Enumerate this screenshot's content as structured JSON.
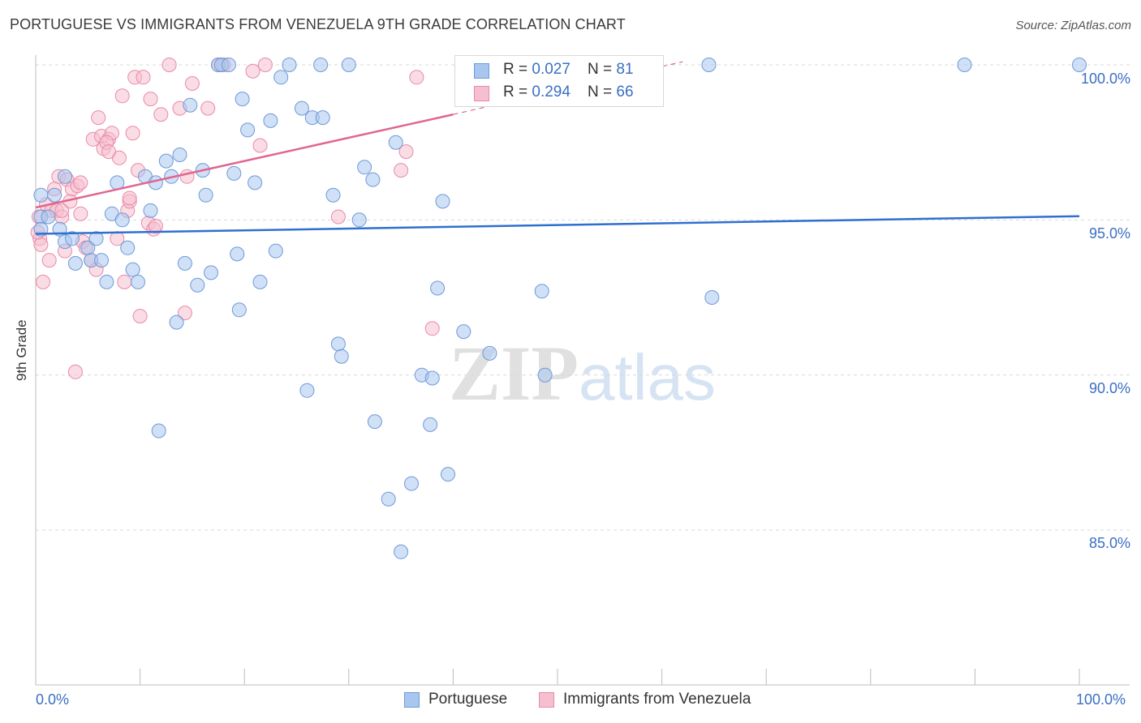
{
  "title": "PORTUGUESE VS IMMIGRANTS FROM VENEZUELA 9TH GRADE CORRELATION CHART",
  "source": "Source: ZipAtlas.com",
  "watermark": {
    "zip": "ZIP",
    "atlas": "atlas"
  },
  "legend": {
    "rows": [
      {
        "r_label": "R = ",
        "r_value": "0.027",
        "n_label": "N = ",
        "n_value": "81"
      },
      {
        "r_label": "R = ",
        "r_value": "0.294",
        "n_label": "N = ",
        "n_value": "66"
      }
    ]
  },
  "chart_data": {
    "type": "scatter",
    "title": "PORTUGUESE VS IMMIGRANTS FROM VENEZUELA 9TH GRADE CORRELATION CHART",
    "xlabel": "",
    "ylabel": "9th Grade",
    "xlim": [
      0,
      100
    ],
    "ylim": [
      80.0,
      100.3
    ],
    "x_tick_labels": [
      "0.0%",
      "100.0%"
    ],
    "y_ticks": [
      100,
      95,
      90,
      85
    ],
    "y_tick_labels": [
      "100.0%",
      "95.0%",
      "90.0%",
      "85.0%"
    ],
    "grid": "horizontal dashed",
    "legend_position": "top-center",
    "colors": {
      "portuguese_fill": "#a9c7ee",
      "portuguese_stroke": "#6e9ad8",
      "portuguese_line": "#2f6fd0",
      "venezuela_fill": "#f6bfd0",
      "venezuela_stroke": "#e98aa9",
      "venezuela_line": "#e0668f"
    },
    "series": [
      {
        "name": "Portuguese",
        "R": 0.027,
        "N": 81,
        "trend": {
          "x": [
            0,
            100
          ],
          "y": [
            94.55,
            95.12
          ]
        },
        "points": [
          [
            0.5,
            95.8
          ],
          [
            0.5,
            95.1
          ],
          [
            0.5,
            94.7
          ],
          [
            1.2,
            95.1
          ],
          [
            1.8,
            95.8
          ],
          [
            2.3,
            94.7
          ],
          [
            2.8,
            96.4
          ],
          [
            2.8,
            94.3
          ],
          [
            3.5,
            94.4
          ],
          [
            3.8,
            93.6
          ],
          [
            5.0,
            94.1
          ],
          [
            5.3,
            93.7
          ],
          [
            5.8,
            94.4
          ],
          [
            6.3,
            93.7
          ],
          [
            6.8,
            93.0
          ],
          [
            7.3,
            95.2
          ],
          [
            7.8,
            96.2
          ],
          [
            8.3,
            95.0
          ],
          [
            8.8,
            94.1
          ],
          [
            9.3,
            93.4
          ],
          [
            9.8,
            93.0
          ],
          [
            10.5,
            96.4
          ],
          [
            11.0,
            95.3
          ],
          [
            11.5,
            96.2
          ],
          [
            11.8,
            88.2
          ],
          [
            12.5,
            96.9
          ],
          [
            13.0,
            96.4
          ],
          [
            13.5,
            91.7
          ],
          [
            13.8,
            97.1
          ],
          [
            14.3,
            93.6
          ],
          [
            14.8,
            98.7
          ],
          [
            15.5,
            92.9
          ],
          [
            16.0,
            96.6
          ],
          [
            16.3,
            95.8
          ],
          [
            16.8,
            93.3
          ],
          [
            17.5,
            100.0
          ],
          [
            17.8,
            100.0
          ],
          [
            18.5,
            100.0
          ],
          [
            19.0,
            96.5
          ],
          [
            19.3,
            93.9
          ],
          [
            19.5,
            92.1
          ],
          [
            19.8,
            98.9
          ],
          [
            20.3,
            97.9
          ],
          [
            21.0,
            96.2
          ],
          [
            21.5,
            93.0
          ],
          [
            22.5,
            98.2
          ],
          [
            23.0,
            94.0
          ],
          [
            23.5,
            99.6
          ],
          [
            24.3,
            100.0
          ],
          [
            25.5,
            98.6
          ],
          [
            26.0,
            89.5
          ],
          [
            26.5,
            98.3
          ],
          [
            27.3,
            100.0
          ],
          [
            27.5,
            98.3
          ],
          [
            28.5,
            95.8
          ],
          [
            29.0,
            91.0
          ],
          [
            29.3,
            90.6
          ],
          [
            30.0,
            100.0
          ],
          [
            31.0,
            95.0
          ],
          [
            31.5,
            96.7
          ],
          [
            32.3,
            96.3
          ],
          [
            32.5,
            88.5
          ],
          [
            33.8,
            86.0
          ],
          [
            34.5,
            97.5
          ],
          [
            35.0,
            84.3
          ],
          [
            36.0,
            86.5
          ],
          [
            37.0,
            90.0
          ],
          [
            37.8,
            88.4
          ],
          [
            38.0,
            89.9
          ],
          [
            38.5,
            92.8
          ],
          [
            39.0,
            95.6
          ],
          [
            39.5,
            86.8
          ],
          [
            41.0,
            91.4
          ],
          [
            43.5,
            90.7
          ],
          [
            48.0,
            100.0
          ],
          [
            48.5,
            92.7
          ],
          [
            48.8,
            90.0
          ],
          [
            64.8,
            92.5
          ],
          [
            64.5,
            100.0
          ],
          [
            89.0,
            100.0
          ],
          [
            100.0,
            100.0
          ]
        ]
      },
      {
        "name": "Immigrants from Venezuela",
        "R": 0.294,
        "N": 66,
        "trend": {
          "x": [
            0,
            40
          ],
          "y": [
            95.4,
            98.4
          ]
        },
        "trend_dashed": {
          "x": [
            40,
            62
          ],
          "y": [
            98.4,
            100.1
          ]
        },
        "points": [
          [
            0.3,
            95.1
          ],
          [
            0.4,
            94.4
          ],
          [
            0.5,
            94.2
          ],
          [
            0.7,
            93.0
          ],
          [
            1.0,
            95.5
          ],
          [
            1.3,
            93.7
          ],
          [
            1.5,
            95.3
          ],
          [
            1.8,
            96.0
          ],
          [
            2.0,
            95.3
          ],
          [
            2.2,
            96.4
          ],
          [
            2.5,
            95.1
          ],
          [
            2.8,
            94.0
          ],
          [
            3.0,
            96.3
          ],
          [
            3.3,
            95.6
          ],
          [
            3.5,
            96.0
          ],
          [
            3.8,
            90.1
          ],
          [
            4.0,
            96.1
          ],
          [
            4.3,
            96.2
          ],
          [
            4.5,
            94.3
          ],
          [
            4.8,
            94.1
          ],
          [
            5.3,
            93.7
          ],
          [
            5.5,
            97.6
          ],
          [
            5.8,
            93.4
          ],
          [
            6.0,
            98.3
          ],
          [
            6.3,
            97.7
          ],
          [
            6.5,
            97.3
          ],
          [
            7.0,
            97.6
          ],
          [
            7.3,
            97.8
          ],
          [
            7.8,
            94.4
          ],
          [
            8.0,
            97.0
          ],
          [
            8.3,
            99.0
          ],
          [
            8.5,
            93.0
          ],
          [
            8.8,
            95.3
          ],
          [
            9.0,
            95.6
          ],
          [
            9.3,
            97.8
          ],
          [
            9.5,
            99.6
          ],
          [
            9.8,
            96.6
          ],
          [
            10.0,
            91.9
          ],
          [
            10.3,
            99.6
          ],
          [
            10.8,
            94.9
          ],
          [
            11.0,
            98.9
          ],
          [
            11.3,
            94.7
          ],
          [
            12.0,
            98.4
          ],
          [
            12.8,
            100.0
          ],
          [
            13.8,
            98.6
          ],
          [
            14.3,
            92.0
          ],
          [
            14.5,
            96.4
          ],
          [
            15.0,
            99.4
          ],
          [
            16.5,
            98.6
          ],
          [
            17.5,
            100.0
          ],
          [
            18.0,
            100.0
          ],
          [
            20.8,
            99.8
          ],
          [
            21.5,
            97.4
          ],
          [
            22.0,
            100.0
          ],
          [
            29.0,
            95.1
          ],
          [
            35.0,
            96.6
          ],
          [
            35.5,
            97.2
          ],
          [
            36.5,
            99.6
          ],
          [
            38.0,
            91.5
          ],
          [
            4.3,
            95.2
          ],
          [
            0.2,
            94.6
          ],
          [
            6.8,
            97.5
          ],
          [
            2.5,
            95.3
          ],
          [
            11.5,
            94.8
          ],
          [
            7.0,
            97.2
          ],
          [
            9.0,
            95.7
          ]
        ]
      }
    ]
  },
  "x_labels": {
    "left": "0.0%",
    "right": "100.0%"
  },
  "y_axis_label": "9th Grade",
  "y_tick_texts": {
    "t100": "100.0%",
    "t95": "95.0%",
    "t90": "90.0%",
    "t85": "85.0%"
  },
  "bottom_legend": {
    "portuguese": "Portuguese",
    "venezuela": "Immigrants from Venezuela"
  }
}
